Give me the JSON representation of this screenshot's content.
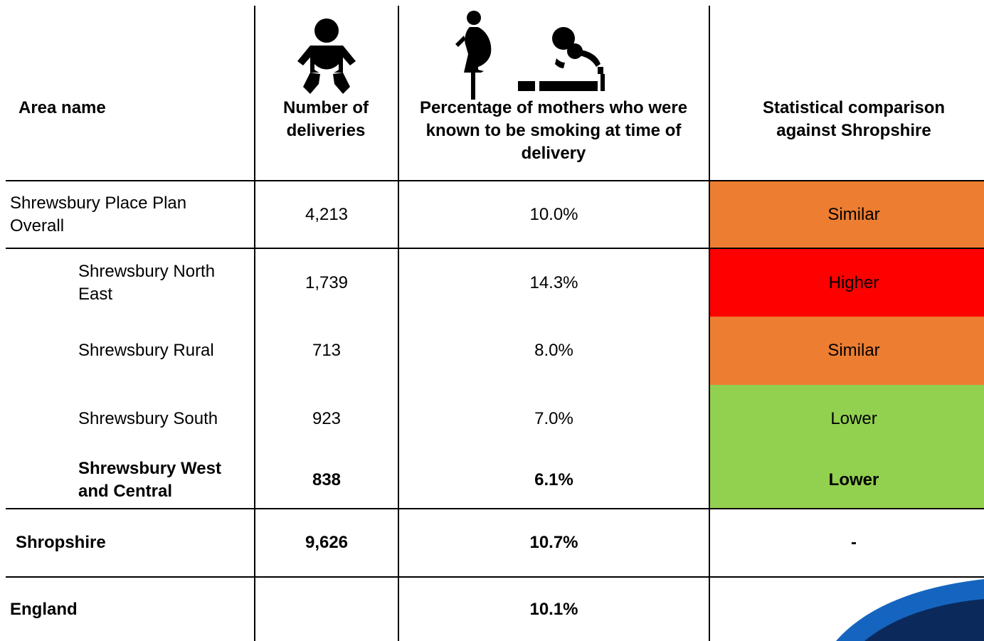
{
  "chart_data": {
    "type": "table",
    "columns": [
      "Area name",
      "Number of deliveries",
      "Percentage of mothers who were known to be smoking at time of delivery",
      "Statistical comparison against Shropshire"
    ],
    "rows": [
      {
        "area": "Shrewsbury Place Plan Overall",
        "deliveries": "4,213",
        "percentage": "10.0%",
        "comparison": "Similar",
        "color": "#ED7D31",
        "indent": false,
        "bold": false
      },
      {
        "area": "Shrewsbury North East",
        "deliveries": "1,739",
        "percentage": "14.3%",
        "comparison": "Higher",
        "color": "#FF0000",
        "indent": true,
        "bold": false
      },
      {
        "area": "Shrewsbury Rural",
        "deliveries": "713",
        "percentage": "8.0%",
        "comparison": "Similar",
        "color": "#ED7D31",
        "indent": true,
        "bold": false
      },
      {
        "area": "Shrewsbury South",
        "deliveries": "923",
        "percentage": "7.0%",
        "comparison": "Lower",
        "color": "#92D050",
        "indent": true,
        "bold": false
      },
      {
        "area": "Shrewsbury West and Central",
        "deliveries": "838",
        "percentage": "6.1%",
        "comparison": "Lower",
        "color": "#92D050",
        "indent": true,
        "bold": true
      },
      {
        "area": "Shropshire",
        "deliveries": "9,626",
        "percentage": "10.7%",
        "comparison": "-",
        "color": "",
        "indent": false,
        "bold": true
      },
      {
        "area": "England",
        "deliveries": "",
        "percentage": "10.1%",
        "comparison": "",
        "color": "",
        "indent": false,
        "bold": true
      }
    ]
  },
  "icons": {
    "deliveries": "baby-icon",
    "percentage_left": "pregnant-woman-icon",
    "percentage_right": "smoking-icon"
  },
  "colors": {
    "similar": "#ED7D31",
    "higher": "#FF0000",
    "lower": "#92D050",
    "logo_dark": "#0B2A5B",
    "logo_blue": "#1565C0"
  }
}
